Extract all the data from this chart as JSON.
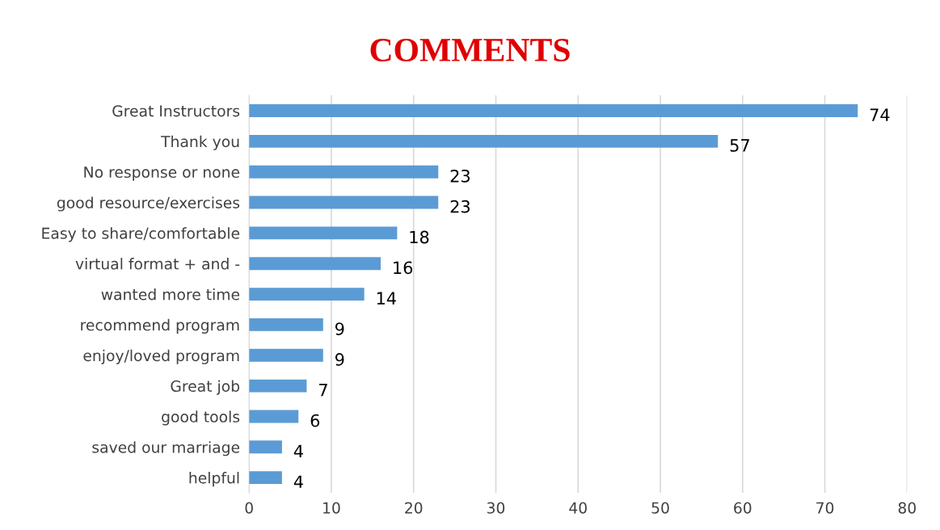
{
  "chart_data": {
    "type": "bar",
    "orientation": "horizontal",
    "title": "COMMENTS",
    "categories": [
      "Great Instructors",
      "Thank you",
      "No response or none",
      "good resource/exercises",
      "Easy to share/comfortable",
      "virtual format + and -",
      "wanted more time",
      "recommend program",
      "enjoy/loved program",
      "Great job",
      "good tools",
      "saved our marriage",
      "helpful"
    ],
    "values": [
      74,
      57,
      23,
      23,
      18,
      16,
      14,
      9,
      9,
      7,
      6,
      4,
      4
    ],
    "color": "#5b9bd5",
    "xlim": [
      0,
      80
    ],
    "xticks": [
      0,
      10,
      20,
      30,
      40,
      50,
      60,
      70,
      80
    ],
    "grid": "x",
    "data_labels": true
  }
}
